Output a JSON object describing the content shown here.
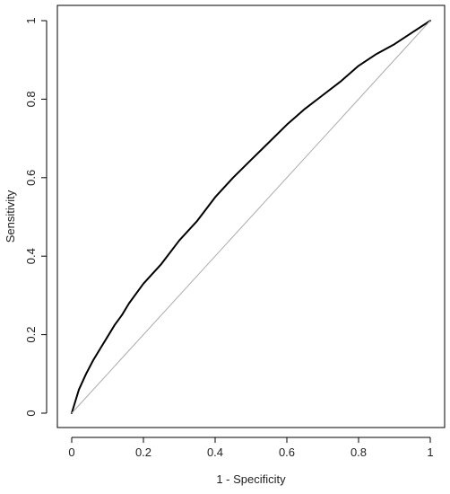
{
  "chart_data": {
    "type": "line",
    "xlabel": "1 - Specificity",
    "ylabel": "Sensitivity",
    "xlim": [
      0,
      1
    ],
    "ylim": [
      0,
      1
    ],
    "x_ticks": [
      "0",
      "0.2",
      "0.4",
      "0.6",
      "0.8",
      "1"
    ],
    "y_ticks": [
      "0",
      "0.2",
      "0.4",
      "0.6",
      "0.8",
      "1"
    ],
    "grid": false,
    "legend": "none",
    "series": [
      {
        "type": "roc-curve",
        "color": "#000000",
        "x": [
          0,
          0.02,
          0.04,
          0.06,
          0.08,
          0.1,
          0.12,
          0.14,
          0.16,
          0.2,
          0.25,
          0.3,
          0.35,
          0.4,
          0.45,
          0.5,
          0.55,
          0.6,
          0.65,
          0.7,
          0.75,
          0.8,
          0.85,
          0.9,
          0.95,
          1.0
        ],
        "y": [
          0,
          0.06,
          0.1,
          0.135,
          0.165,
          0.195,
          0.225,
          0.25,
          0.28,
          0.33,
          0.38,
          0.44,
          0.49,
          0.55,
          0.6,
          0.645,
          0.69,
          0.735,
          0.775,
          0.81,
          0.845,
          0.885,
          0.915,
          0.94,
          0.97,
          1.0
        ]
      },
      {
        "type": "reference-diagonal",
        "color": "#aaaaaa",
        "x": [
          0,
          1
        ],
        "y": [
          0,
          1
        ]
      }
    ]
  }
}
